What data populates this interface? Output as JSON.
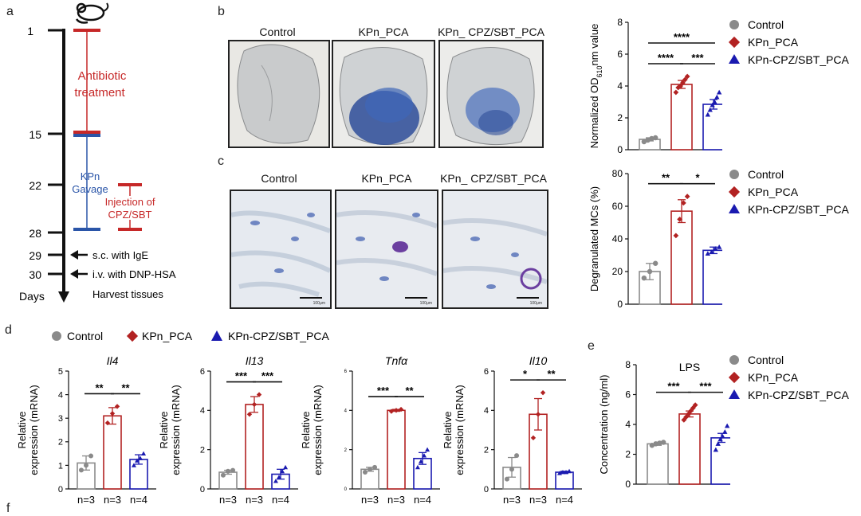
{
  "panels": {
    "a": "a",
    "b": "b",
    "c": "c",
    "d": "d",
    "e": "e",
    "f": "f"
  },
  "timeline": {
    "days": [
      "1",
      "15",
      "22",
      "28",
      "29",
      "30"
    ],
    "days_label": "Days",
    "antibiotic": "Antibiotic\ntreatment",
    "gavage": "KPn\nGavage",
    "injection": "Injection of\nCPZ/SBT",
    "sc": "s.c. with IgE",
    "iv": "i.v. with DNP-HSA",
    "harvest": "Harvest tissues"
  },
  "ear_titles": [
    "Control",
    "KPn_PCA",
    "KPn_ CPZ/SBT_PCA"
  ],
  "histo_titles": [
    "Control",
    "KPn_PCA",
    "KPn_ CPZ/SBT_PCA"
  ],
  "scalebars": [
    "100μm",
    "100μm",
    "100μm"
  ],
  "legend": {
    "control": "Control",
    "kpn_pca": "KPn_PCA",
    "kpn_cpz": "KPn-CPZ/SBT_PCA",
    "colors": {
      "control": "#8a8a8a",
      "kpn_pca": "#b22222",
      "kpn_cpz": "#1a1ab0"
    }
  },
  "chart_data": [
    {
      "id": "b_od",
      "type": "bar",
      "ylabel": "Normalized OD610nm value",
      "ylim": [
        0,
        8
      ],
      "yticks": [
        0,
        2,
        4,
        6,
        8
      ],
      "series": [
        {
          "name": "Control",
          "value": 0.65,
          "err": 0.1,
          "points": [
            0.5,
            0.6,
            0.7,
            0.75
          ]
        },
        {
          "name": "KPn_PCA",
          "value": 4.1,
          "err": 0.25,
          "points": [
            3.6,
            3.9,
            4.0,
            4.2,
            4.4,
            4.6
          ]
        },
        {
          "name": "KPn-CPZ/SBT_PCA",
          "value": 2.85,
          "err": 0.3,
          "points": [
            2.2,
            2.5,
            2.8,
            3.0,
            3.3,
            3.6
          ]
        }
      ],
      "significance": [
        {
          "from": 0,
          "to": 2,
          "label": "****"
        },
        {
          "from": 0,
          "to": 1,
          "label": "****"
        },
        {
          "from": 1,
          "to": 2,
          "label": "***"
        }
      ]
    },
    {
      "id": "c_mcs",
      "type": "bar",
      "ylabel": "Degranulated MCs (%)",
      "ylim": [
        0,
        80
      ],
      "yticks": [
        0,
        20,
        40,
        60,
        80
      ],
      "series": [
        {
          "name": "Control",
          "value": 20,
          "err": 5,
          "points": [
            16,
            20,
            25
          ]
        },
        {
          "name": "KPn_PCA",
          "value": 57,
          "err": 7,
          "points": [
            42,
            52,
            62,
            66
          ]
        },
        {
          "name": "KPn-CPZ/SBT_PCA",
          "value": 33,
          "err": 2,
          "points": [
            31,
            32,
            34,
            35
          ]
        }
      ],
      "significance": [
        {
          "from": 0,
          "to": 1,
          "label": "**"
        },
        {
          "from": 1,
          "to": 2,
          "label": "*"
        }
      ]
    },
    {
      "id": "d_il4",
      "type": "bar",
      "title": "Il4",
      "ylabel": "Relative\nexpression (mRNA)",
      "ylim": [
        0,
        5
      ],
      "yticks": [
        0,
        1,
        2,
        3,
        4,
        5
      ],
      "ns": [
        "n=3",
        "n=3",
        "n=4"
      ],
      "series": [
        {
          "name": "Control",
          "value": 1.1,
          "err": 0.3,
          "points": [
            0.8,
            1.0,
            1.4
          ]
        },
        {
          "name": "KPn_PCA",
          "value": 3.1,
          "err": 0.35,
          "points": [
            2.8,
            3.2,
            3.5
          ]
        },
        {
          "name": "KPn-CPZ/SBT_PCA",
          "value": 1.25,
          "err": 0.2,
          "points": [
            1.0,
            1.2,
            1.3,
            1.5
          ]
        }
      ],
      "significance": [
        {
          "from": 0,
          "to": 1,
          "label": "**"
        },
        {
          "from": 1,
          "to": 2,
          "label": "**"
        }
      ]
    },
    {
      "id": "d_il13",
      "type": "bar",
      "title": "Il13",
      "ylabel": "Relative\nexpression (mRNA)",
      "ylim": [
        0,
        6
      ],
      "yticks": [
        0,
        2,
        4,
        6
      ],
      "ns": [
        "n=3",
        "n=3",
        "n=4"
      ],
      "series": [
        {
          "name": "Control",
          "value": 0.85,
          "err": 0.1,
          "points": [
            0.7,
            0.9,
            0.95
          ]
        },
        {
          "name": "KPn_PCA",
          "value": 4.3,
          "err": 0.4,
          "points": [
            3.8,
            4.3,
            4.8
          ]
        },
        {
          "name": "KPn-CPZ/SBT_PCA",
          "value": 0.75,
          "err": 0.25,
          "points": [
            0.4,
            0.6,
            0.9,
            1.1
          ]
        }
      ],
      "significance": [
        {
          "from": 0,
          "to": 1,
          "label": "***"
        },
        {
          "from": 1,
          "to": 2,
          "label": "***"
        }
      ]
    },
    {
      "id": "d_tnfa",
      "type": "bar",
      "title": "Tnfα",
      "ylabel": "Relative\nexpression (mRNA)",
      "ylim": [
        0,
        6
      ],
      "yticks": [
        0,
        2,
        4,
        6
      ],
      "ns": [
        "n=3",
        "n=3",
        "n=4"
      ],
      "series": [
        {
          "name": "Control",
          "value": 1.0,
          "err": 0.1,
          "points": [
            0.85,
            1.0,
            1.1
          ]
        },
        {
          "name": "KPn_PCA",
          "value": 4.0,
          "err": 0.05,
          "points": [
            3.95,
            4.0,
            4.05
          ]
        },
        {
          "name": "KPn-CPZ/SBT_PCA",
          "value": 1.55,
          "err": 0.3,
          "points": [
            1.1,
            1.4,
            1.7,
            2.0
          ]
        }
      ],
      "significance": [
        {
          "from": 0,
          "to": 1,
          "label": "***"
        },
        {
          "from": 1,
          "to": 2,
          "label": "**"
        }
      ]
    },
    {
      "id": "d_il10",
      "type": "bar",
      "title": "Il10",
      "ylabel": "Relative\nexpression (mRNA)",
      "ylim": [
        0,
        6
      ],
      "yticks": [
        0,
        2,
        4,
        6
      ],
      "ns": [
        "n=3",
        "n=3",
        "n=4"
      ],
      "series": [
        {
          "name": "Control",
          "value": 1.1,
          "err": 0.5,
          "points": [
            0.5,
            1.0,
            1.7
          ]
        },
        {
          "name": "KPn_PCA",
          "value": 3.8,
          "err": 0.8,
          "points": [
            2.6,
            3.8,
            4.9
          ]
        },
        {
          "name": "KPn-CPZ/SBT_PCA",
          "value": 0.85,
          "err": 0.05,
          "points": [
            0.8,
            0.85,
            0.85,
            0.9
          ]
        }
      ],
      "significance": [
        {
          "from": 0,
          "to": 1,
          "label": "*"
        },
        {
          "from": 1,
          "to": 2,
          "label": "**"
        }
      ]
    },
    {
      "id": "e_lps",
      "type": "bar",
      "title": "LPS",
      "ylabel": "Concentration (ng/ml)",
      "ylim": [
        0,
        8
      ],
      "yticks": [
        0,
        2,
        4,
        6,
        8
      ],
      "series": [
        {
          "name": "Control",
          "value": 2.7,
          "err": 0.1,
          "points": [
            2.6,
            2.7,
            2.75,
            2.8
          ]
        },
        {
          "name": "KPn_PCA",
          "value": 4.7,
          "err": 0.2,
          "points": [
            4.3,
            4.5,
            4.7,
            4.9,
            5.1,
            5.3
          ]
        },
        {
          "name": "KPn-CPZ/SBT_PCA",
          "value": 3.1,
          "err": 0.3,
          "points": [
            2.3,
            2.7,
            3.0,
            3.2,
            3.5,
            3.9
          ]
        }
      ],
      "significance": [
        {
          "from": 0,
          "to": 1,
          "label": "***"
        },
        {
          "from": 1,
          "to": 2,
          "label": "***"
        }
      ]
    }
  ]
}
